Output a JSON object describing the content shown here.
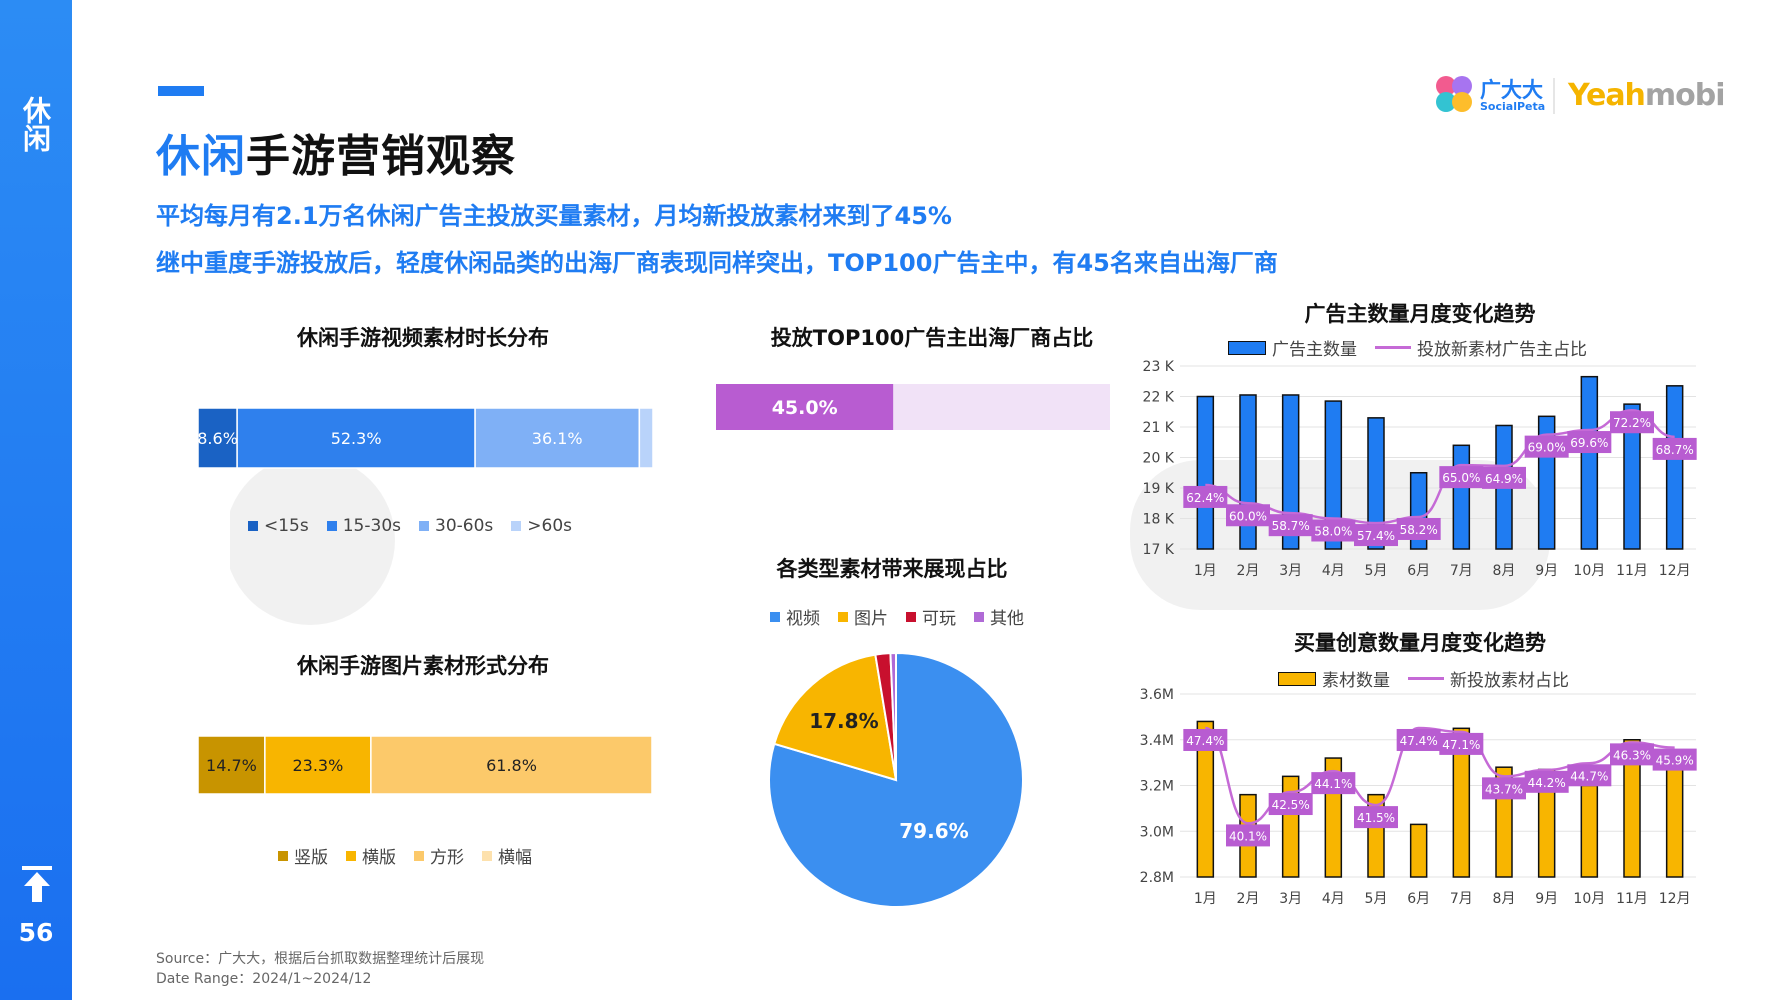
{
  "sidebar": {
    "category": "休闲",
    "page_number": "56"
  },
  "page_title": {
    "highlight": "休闲",
    "rest": "手游营销观察"
  },
  "subtitles": [
    "平均每月有2.1万名休闲广告主投放买量素材，月均新投放素材来到了45%",
    "继中重度手游投放后，轻度休闲品类的出海厂商表现同样突出，TOP100广告主中，有45名来自出海厂商"
  ],
  "logos": {
    "brand_cn": "广大大",
    "brand_en": "SocialPeta",
    "partner_a": "Yeah",
    "partner_b": "mobi"
  },
  "colors": {
    "accent": "#1f7cf2",
    "bar_blue": "#1f7cf2",
    "bar_yellow": "#f8b500",
    "line_purple": "#c56ad6",
    "label_purple": "#b85cd1"
  },
  "footer": {
    "source": "Source：广大大，根据后台抓取数据整理统计后展现",
    "date_range": "Date Range：2024/1~2024/12"
  },
  "chart_data": [
    {
      "id": "video-duration",
      "type": "bar",
      "orientation": "horizontal-stacked-100",
      "title": "休闲手游视频素材时长分布",
      "categories": [
        "<15s",
        "15-30s",
        "30-60s",
        ">60s"
      ],
      "values": [
        8.6,
        52.3,
        36.1,
        3.0
      ],
      "labels": [
        "8.6%",
        "52.3%",
        "36.1%",
        ""
      ],
      "colors": [
        "#1a62c4",
        "#2f80ed",
        "#7fb0f6",
        "#b9d3fa"
      ],
      "legend_position": "bottom"
    },
    {
      "id": "image-format",
      "type": "bar",
      "orientation": "horizontal-stacked-100",
      "title": "休闲手游图片素材形式分布",
      "categories": [
        "竖版",
        "横版",
        "方形",
        "横幅"
      ],
      "values": [
        14.7,
        23.3,
        61.8,
        0.2
      ],
      "labels": [
        "14.7%",
        "23.3%",
        "61.8%",
        ""
      ],
      "colors": [
        "#c89400",
        "#f8b500",
        "#fcc96a",
        "#fde1ad"
      ],
      "legend_position": "bottom"
    },
    {
      "id": "top100-overseas",
      "type": "bar",
      "orientation": "horizontal-stacked-100",
      "title": "投放TOP100广告主出海厂商占比",
      "values": [
        45.0,
        55.0
      ],
      "labels": [
        "45.0%",
        ""
      ],
      "colors": [
        "#b85cd1",
        "#f1e2f7"
      ]
    },
    {
      "id": "material-share",
      "type": "pie",
      "title": "各类型素材带来展现占比",
      "categories": [
        "视频",
        "图片",
        "可玩",
        "其他"
      ],
      "values": [
        79.6,
        17.8,
        1.9,
        0.7
      ],
      "labels": [
        "79.6%",
        "17.8%",
        "",
        ""
      ],
      "colors": [
        "#3b8ff0",
        "#f8b500",
        "#c8102e",
        "#b06ad6"
      ],
      "legend_position": "top"
    },
    {
      "id": "advertiser-trend",
      "type": "bar",
      "title": "广告主数量月度变化趋势",
      "categories": [
        "1月",
        "2月",
        "3月",
        "4月",
        "5月",
        "6月",
        "7月",
        "8月",
        "9月",
        "10月",
        "11月",
        "12月"
      ],
      "series": [
        {
          "name": "广告主数量",
          "type": "bar",
          "values": [
            22.0,
            22.05,
            22.05,
            21.85,
            21.3,
            19.5,
            20.4,
            21.05,
            21.35,
            22.65,
            21.75,
            22.35
          ]
        },
        {
          "name": "投放新素材广告主占比",
          "type": "line",
          "values": [
            62.4,
            60.0,
            58.7,
            58.0,
            57.4,
            58.2,
            65.0,
            64.9,
            69.0,
            69.6,
            72.2,
            68.7
          ],
          "labels": [
            "62.4%",
            "60.0%",
            "58.7%",
            "58.0%",
            "57.4%",
            "58.2%",
            "65.0%",
            "64.9%",
            "69.0%",
            "69.6%",
            "72.2%",
            "68.7%"
          ]
        }
      ],
      "ylim": [
        17,
        23
      ],
      "yticks": [
        "17 K",
        "18 K",
        "19 K",
        "20 K",
        "21 K",
        "22 K",
        "23 K"
      ],
      "line_range": [
        54,
        78
      ],
      "legend_position": "top",
      "grid": true
    },
    {
      "id": "creative-trend",
      "type": "bar",
      "title": "买量创意数量月度变化趋势",
      "categories": [
        "1月",
        "2月",
        "3月",
        "4月",
        "5月",
        "6月",
        "7月",
        "8月",
        "9月",
        "10月",
        "11月",
        "12月"
      ],
      "series": [
        {
          "name": "素材数量",
          "type": "bar",
          "values": [
            3.48,
            3.16,
            3.24,
            3.32,
            3.16,
            3.03,
            3.45,
            3.28,
            3.27,
            3.2,
            3.4,
            3.35
          ]
        },
        {
          "name": "新投放素材占比",
          "type": "line",
          "values": [
            47.4,
            40.1,
            42.5,
            44.1,
            41.5,
            47.4,
            47.1,
            43.7,
            44.2,
            44.7,
            46.3,
            45.9
          ],
          "labels": [
            "47.4%",
            "40.1%",
            "42.5%",
            "44.1%",
            "41.5%",
            "47.4%",
            "47.1%",
            "43.7%",
            "44.2%",
            "44.7%",
            "46.3%",
            "45.9%"
          ]
        }
      ],
      "ylim": [
        2.8,
        3.6
      ],
      "yticks": [
        "2.8M",
        "3.0M",
        "3.2M",
        "3.4M",
        "3.6M"
      ],
      "line_range": [
        36,
        50
      ],
      "legend_position": "top",
      "grid": true
    }
  ]
}
